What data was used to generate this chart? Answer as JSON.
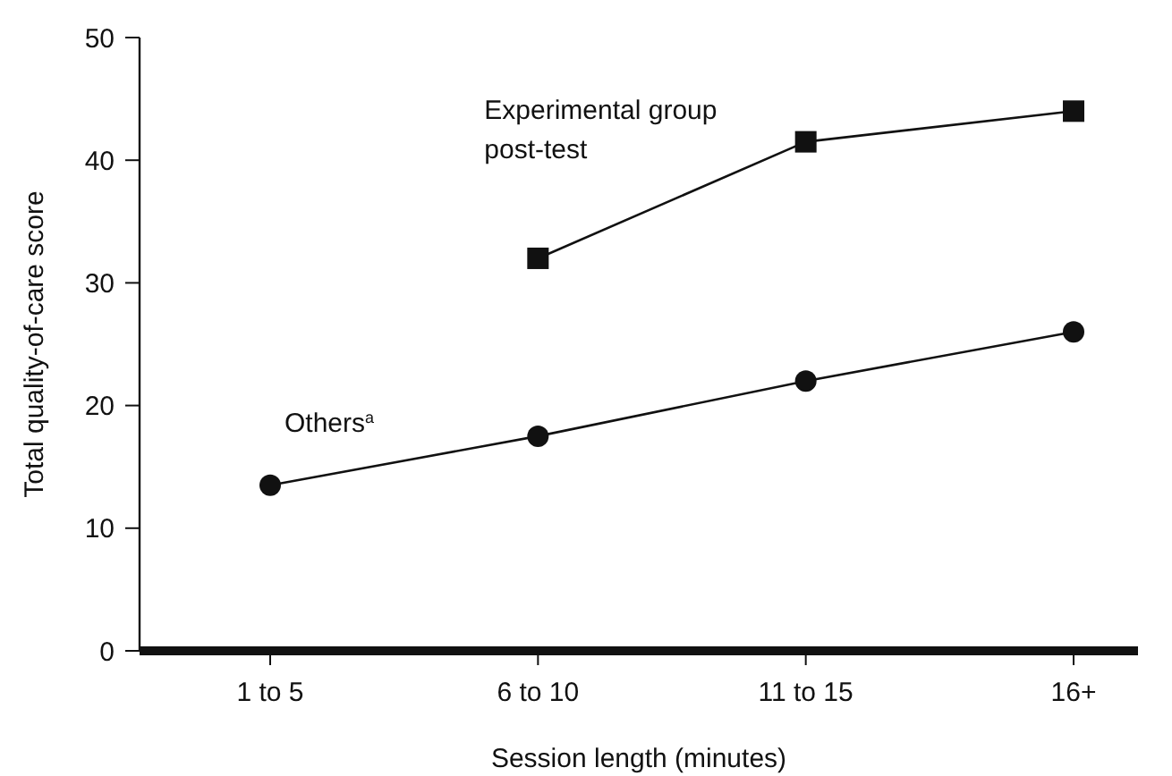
{
  "chart_data": {
    "type": "line",
    "xlabel": "Session length (minutes)",
    "ylabel": "Total quality-of-care score",
    "categories": [
      "1 to 5",
      "6 to 10",
      "11 to 15",
      "16+"
    ],
    "series": [
      {
        "name": "Experimental group post-test",
        "color": "#111111",
        "marker": "square",
        "values": [
          null,
          32,
          41.5,
          44
        ]
      },
      {
        "name": "Others$^{a}$",
        "color": "#111111",
        "marker": "circle",
        "values": [
          13.5,
          17.5,
          22,
          26
        ]
      }
    ],
    "ylim": [
      0,
      50
    ],
    "yticks": [
      0,
      10,
      20,
      30,
      40,
      50
    ],
    "grid": false,
    "line_style": "solid"
  }
}
